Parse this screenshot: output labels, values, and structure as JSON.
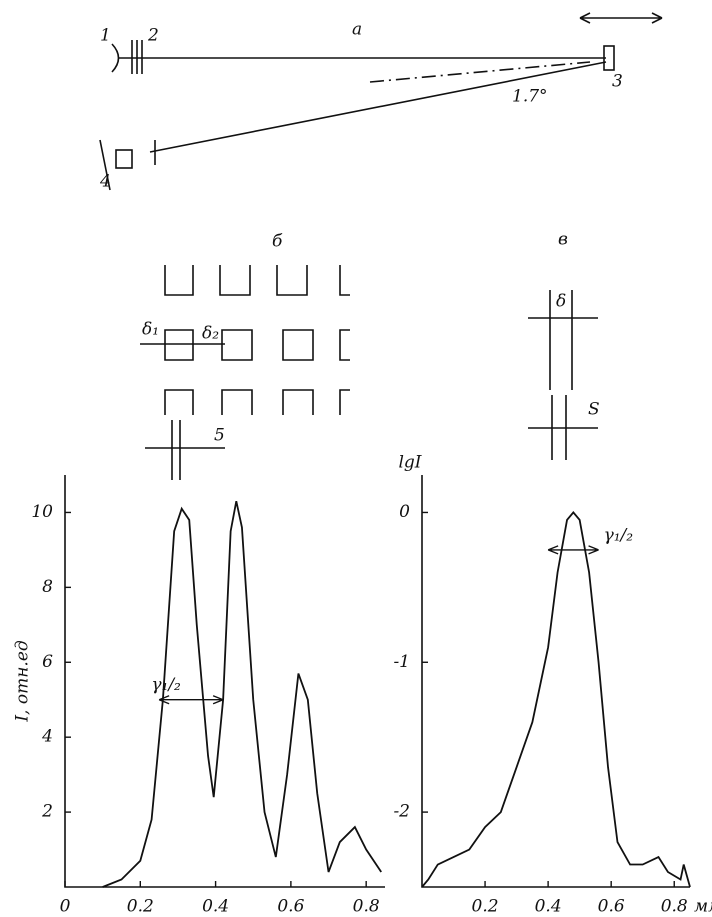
{
  "figure": {
    "panel_a": {
      "label": "а",
      "part_labels": [
        "1",
        "2",
        "3",
        "4"
      ],
      "angle": "1.7°"
    },
    "panel_b": {
      "label": "б",
      "gap_labels": [
        "δ₁",
        "δ₂"
      ],
      "period_label": "5"
    },
    "panel_c": {
      "label": "в",
      "gap_label": "δ",
      "period_label": "S"
    }
  },
  "chart_data": [
    {
      "type": "line",
      "y_label": "I, отн.ед",
      "annotation": "γ₁/₂",
      "annotation_y": 5,
      "annotation_x": [
        0.25,
        0.42
      ],
      "x": [
        0.1,
        0.15,
        0.2,
        0.23,
        0.26,
        0.29,
        0.31,
        0.33,
        0.35,
        0.38,
        0.395,
        0.42,
        0.44,
        0.455,
        0.47,
        0.5,
        0.53,
        0.56,
        0.59,
        0.62,
        0.645,
        0.67,
        0.7,
        0.73,
        0.77,
        0.8,
        0.84
      ],
      "values": [
        0,
        0.2,
        0.7,
        1.8,
        5,
        9.5,
        10.1,
        9.8,
        7,
        3.5,
        2.4,
        5,
        9.5,
        10.3,
        9.6,
        5,
        2,
        0.8,
        3,
        5.7,
        5,
        2.5,
        0.4,
        1.2,
        1.6,
        1,
        0.4
      ],
      "color": "#111111",
      "xlim": [
        0,
        0.85
      ],
      "ylim": [
        0,
        11
      ],
      "xticks": [
        0,
        0.2,
        0.4,
        0.6,
        0.8
      ],
      "yticks": [
        2,
        4,
        6,
        8,
        10
      ]
    },
    {
      "type": "line",
      "y_label": "lgI",
      "x_unit": "мм",
      "annotation": "γ₁/₂",
      "annotation_y": -0.25,
      "annotation_x": [
        0.4,
        0.56
      ],
      "x": [
        0,
        0.02,
        0.05,
        0.1,
        0.15,
        0.2,
        0.25,
        0.3,
        0.35,
        0.4,
        0.43,
        0.46,
        0.48,
        0.5,
        0.53,
        0.56,
        0.59,
        0.62,
        0.66,
        0.7,
        0.75,
        0.78,
        0.82,
        0.83,
        0.85
      ],
      "values": [
        -2.5,
        -2.45,
        -2.35,
        -2.3,
        -2.25,
        -2.1,
        -2.0,
        -1.7,
        -1.4,
        -0.9,
        -0.4,
        -0.05,
        0,
        -0.05,
        -0.4,
        -1,
        -1.7,
        -2.2,
        -2.35,
        -2.35,
        -2.3,
        -2.4,
        -2.45,
        -2.35,
        -2.5
      ],
      "color": "#111111",
      "xlim": [
        0,
        0.85
      ],
      "ylim": [
        -2.5,
        0.25
      ],
      "xticks": [
        0.2,
        0.4,
        0.6,
        0.8
      ],
      "yticks": [
        0,
        -1,
        -2
      ]
    }
  ]
}
